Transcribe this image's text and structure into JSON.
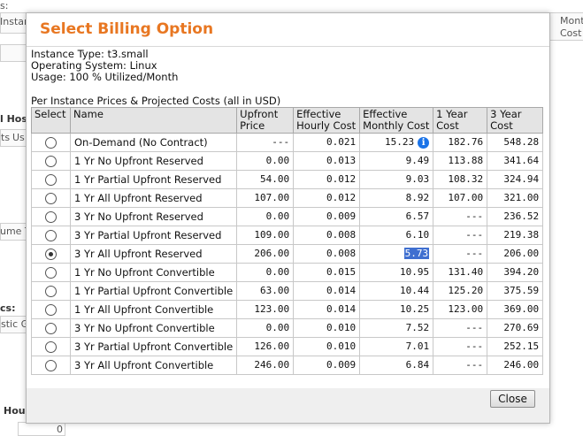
{
  "background": {
    "frag_top": "s:",
    "frag_instar": "Instar",
    "frag_mont": "Mont",
    "frag_cost": "Cost",
    "frag_hos": "l Hos",
    "frag_ts": "ts",
    "frag_us": "Us",
    "frag_ume": "ume T",
    "frag_cs": "cs:",
    "frag_stic": "stic G",
    "frag_hou": "Hou",
    "frag_zero": "0"
  },
  "modal": {
    "title": "Select Billing Option",
    "instance_type": "Instance Type: t3.small",
    "operating_system": "Operating System: Linux",
    "usage": "Usage: 100 % Utilized/Month",
    "prices_caption": "Per Instance Prices & Projected Costs (all in USD)",
    "columns": {
      "select": "Select",
      "name": "Name",
      "upfront": "Upfront Price",
      "hourly": "Effective Hourly Cost",
      "monthly": "Effective Monthly Cost",
      "one_year": "1 Year Cost",
      "three_year": "3 Year Cost"
    },
    "rows": [
      {
        "name": "On-Demand (No Contract)",
        "upfront": "---",
        "hourly": "0.021",
        "monthly": "15.23",
        "one_year": "182.76",
        "three_year": "548.28",
        "selected": false
      },
      {
        "name": "1 Yr No Upfront Reserved",
        "upfront": "0.00",
        "hourly": "0.013",
        "monthly": "9.49",
        "one_year": "113.88",
        "three_year": "341.64",
        "selected": false
      },
      {
        "name": "1 Yr Partial Upfront Reserved",
        "upfront": "54.00",
        "hourly": "0.012",
        "monthly": "9.03",
        "one_year": "108.32",
        "three_year": "324.94",
        "selected": false
      },
      {
        "name": "1 Yr All Upfront Reserved",
        "upfront": "107.00",
        "hourly": "0.012",
        "monthly": "8.92",
        "one_year": "107.00",
        "three_year": "321.00",
        "selected": false
      },
      {
        "name": "3 Yr No Upfront Reserved",
        "upfront": "0.00",
        "hourly": "0.009",
        "monthly": "6.57",
        "one_year": "---",
        "three_year": "236.52",
        "selected": false
      },
      {
        "name": "3 Yr Partial Upfront Reserved",
        "upfront": "109.00",
        "hourly": "0.008",
        "monthly": "6.10",
        "one_year": "---",
        "three_year": "219.38",
        "selected": false
      },
      {
        "name": "3 Yr All Upfront Reserved",
        "upfront": "206.00",
        "hourly": "0.008",
        "monthly": "5.73",
        "one_year": "---",
        "three_year": "206.00",
        "selected": true
      },
      {
        "name": "1 Yr No Upfront Convertible",
        "upfront": "0.00",
        "hourly": "0.015",
        "monthly": "10.95",
        "one_year": "131.40",
        "three_year": "394.20",
        "selected": false
      },
      {
        "name": "1 Yr Partial Upfront Convertible",
        "upfront": "63.00",
        "hourly": "0.014",
        "monthly": "10.44",
        "one_year": "125.20",
        "three_year": "375.59",
        "selected": false
      },
      {
        "name": "1 Yr All Upfront Convertible",
        "upfront": "123.00",
        "hourly": "0.014",
        "monthly": "10.25",
        "one_year": "123.00",
        "three_year": "369.00",
        "selected": false
      },
      {
        "name": "3 Yr No Upfront Convertible",
        "upfront": "0.00",
        "hourly": "0.010",
        "monthly": "7.52",
        "one_year": "---",
        "three_year": "270.69",
        "selected": false
      },
      {
        "name": "3 Yr Partial Upfront Convertible",
        "upfront": "126.00",
        "hourly": "0.010",
        "monthly": "7.01",
        "one_year": "---",
        "three_year": "252.15",
        "selected": false
      },
      {
        "name": "3 Yr All Upfront Convertible",
        "upfront": "246.00",
        "hourly": "0.009",
        "monthly": "6.84",
        "one_year": "---",
        "three_year": "246.00",
        "selected": false
      }
    ],
    "info_icon_glyph": "i",
    "close_label": "Close"
  },
  "colors": {
    "title": "#e87722",
    "header_bg": "#e4e4e4",
    "selection_highlight": "#3f6fd0",
    "info_icon": "#1a73e8"
  }
}
